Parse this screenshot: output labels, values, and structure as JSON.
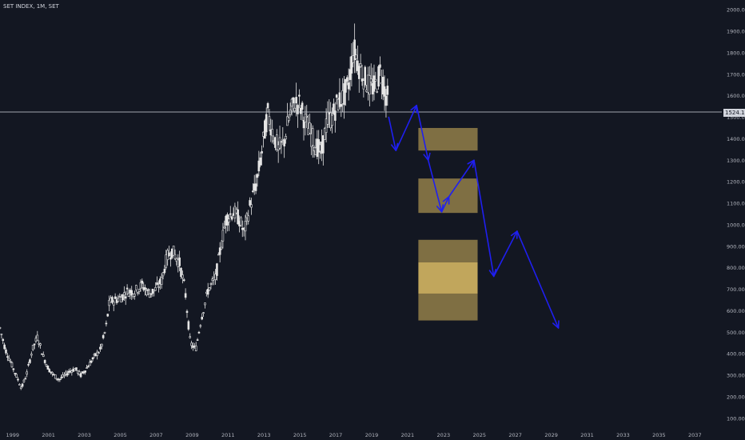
{
  "title": "SET INDEX, 1M, SET",
  "current_price_label": "1524.15",
  "colors": {
    "background": "#131722",
    "candles": "#e6e6e6",
    "axis_text": "#b2b5be",
    "current_line": "#d1d4dc",
    "zone_fill": "#c8aa5a",
    "zone_fill_light": "#e0c066",
    "arrow": "#1f1ff0"
  },
  "chart_data": {
    "type": "line",
    "title": "SET INDEX, 1M, SET",
    "x_ticks": [
      "1999",
      "2001",
      "2003",
      "2005",
      "2007",
      "2009",
      "2011",
      "2013",
      "2015",
      "2017",
      "2019",
      "2021",
      "2023",
      "2025",
      "2027",
      "2029",
      "2031",
      "2033",
      "2035",
      "2037"
    ],
    "y_ticks": [
      "100.00",
      "200.00",
      "300.00",
      "400.00",
      "500.00",
      "600.00",
      "700.00",
      "800.00",
      "900.00",
      "1000.00",
      "1100.00",
      "1200.00",
      "1300.00",
      "1400.00",
      "1500.00",
      "1600.00",
      "1700.00",
      "1800.00",
      "1900.00",
      "2000.00"
    ],
    "ylim": [
      55,
      2045
    ],
    "xlim": [
      1998.3,
      2038.5
    ],
    "current_price": 1524.15,
    "price_series": {
      "name": "SET INDEX",
      "points": [
        [
          1998.3,
          520
        ],
        [
          1998.6,
          420
        ],
        [
          1998.9,
          360
        ],
        [
          1999.2,
          300
        ],
        [
          1999.5,
          240
        ],
        [
          1999.8,
          310
        ],
        [
          2000.1,
          420
        ],
        [
          2000.4,
          480
        ],
        [
          2000.7,
          390
        ],
        [
          2001.0,
          330
        ],
        [
          2001.3,
          300
        ],
        [
          2001.6,
          280
        ],
        [
          2001.9,
          300
        ],
        [
          2002.2,
          320
        ],
        [
          2002.5,
          330
        ],
        [
          2002.8,
          300
        ],
        [
          2003.1,
          330
        ],
        [
          2003.5,
          380
        ],
        [
          2003.9,
          420
        ],
        [
          2004.2,
          520
        ],
        [
          2004.4,
          640
        ],
        [
          2004.7,
          650
        ],
        [
          2005.0,
          660
        ],
        [
          2005.4,
          690
        ],
        [
          2005.8,
          690
        ],
        [
          2006.2,
          720
        ],
        [
          2006.6,
          680
        ],
        [
          2007.0,
          700
        ],
        [
          2007.3,
          740
        ],
        [
          2007.6,
          850
        ],
        [
          2007.9,
          880
        ],
        [
          2008.3,
          820
        ],
        [
          2008.6,
          700
        ],
        [
          2008.9,
          450
        ],
        [
          2009.2,
          420
        ],
        [
          2009.5,
          560
        ],
        [
          2009.9,
          700
        ],
        [
          2010.3,
          750
        ],
        [
          2010.6,
          900
        ],
        [
          2010.9,
          1030
        ],
        [
          2011.3,
          1060
        ],
        [
          2011.6,
          1030
        ],
        [
          2011.9,
          960
        ],
        [
          2012.2,
          1080
        ],
        [
          2012.6,
          1200
        ],
        [
          2012.9,
          1350
        ],
        [
          2013.2,
          1520
        ],
        [
          2013.5,
          1430
        ],
        [
          2013.8,
          1350
        ],
        [
          2014.1,
          1380
        ],
        [
          2014.4,
          1500
        ],
        [
          2014.7,
          1570
        ],
        [
          2015.0,
          1560
        ],
        [
          2015.3,
          1480
        ],
        [
          2015.6,
          1420
        ],
        [
          2015.9,
          1370
        ],
        [
          2016.2,
          1330
        ],
        [
          2016.5,
          1480
        ],
        [
          2016.8,
          1500
        ],
        [
          2017.1,
          1570
        ],
        [
          2017.4,
          1590
        ],
        [
          2017.7,
          1650
        ],
        [
          2018.0,
          1820
        ],
        [
          2018.3,
          1740
        ],
        [
          2018.6,
          1680
        ],
        [
          2018.9,
          1640
        ],
        [
          2019.2,
          1640
        ],
        [
          2019.5,
          1720
        ],
        [
          2019.8,
          1600
        ],
        [
          2019.95,
          1585
        ]
      ]
    },
    "zones": [
      {
        "y_top": 1450,
        "y_bottom": 1345,
        "x_start": 2021.6,
        "x_end": 2024.9
      },
      {
        "y_top": 1215,
        "y_bottom": 1055,
        "x_start": 2021.6,
        "x_end": 2024.9
      },
      {
        "y_top": 930,
        "y_bottom": 825,
        "x_start": 2021.6,
        "x_end": 2024.9
      },
      {
        "y_top": 825,
        "y_bottom": 680,
        "x_start": 2021.6,
        "x_end": 2024.9,
        "highlight": true
      },
      {
        "y_top": 680,
        "y_bottom": 555,
        "x_start": 2021.6,
        "x_end": 2024.9
      }
    ],
    "forecast_path": [
      [
        2019.95,
        1500
      ],
      [
        2020.35,
        1345
      ],
      [
        2021.5,
        1555
      ],
      [
        2022.15,
        1300
      ],
      [
        2022.9,
        1060
      ],
      [
        2023.3,
        1130
      ],
      [
        2024.7,
        1300
      ],
      [
        2025.8,
        760
      ],
      [
        2027.1,
        970
      ],
      [
        2029.4,
        520
      ]
    ],
    "grid": false,
    "legend": "none"
  }
}
